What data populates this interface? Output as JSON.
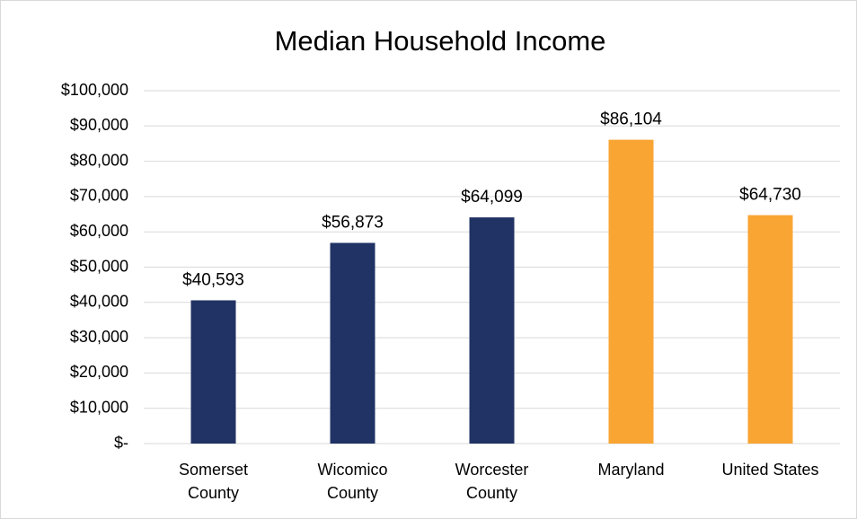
{
  "chart_data": {
    "type": "bar",
    "title": "Median Household Income",
    "categories": [
      "Somerset County",
      "Wicomico County",
      "Worcester County",
      "Maryland",
      "United States"
    ],
    "values": [
      40593,
      56873,
      64099,
      86104,
      64730
    ],
    "value_labels": [
      "$40,593",
      "$56,873",
      "$64,099",
      "$86,104",
      "$64,730"
    ],
    "colors": [
      "#203364",
      "#203364",
      "#203364",
      "#f9a533",
      "#f9a533"
    ],
    "ylim": [
      0,
      100000
    ],
    "yticks": [
      {
        "value": 0,
        "label": "$-"
      },
      {
        "value": 10000,
        "label": "$10,000"
      },
      {
        "value": 20000,
        "label": "$20,000"
      },
      {
        "value": 30000,
        "label": "$30,000"
      },
      {
        "value": 40000,
        "label": "$40,000"
      },
      {
        "value": 50000,
        "label": "$50,000"
      },
      {
        "value": 60000,
        "label": "$60,000"
      },
      {
        "value": 70000,
        "label": "$70,000"
      },
      {
        "value": 80000,
        "label": "$80,000"
      },
      {
        "value": 90000,
        "label": "$90,000"
      },
      {
        "value": 100000,
        "label": "$100,000"
      }
    ],
    "grid": true
  }
}
